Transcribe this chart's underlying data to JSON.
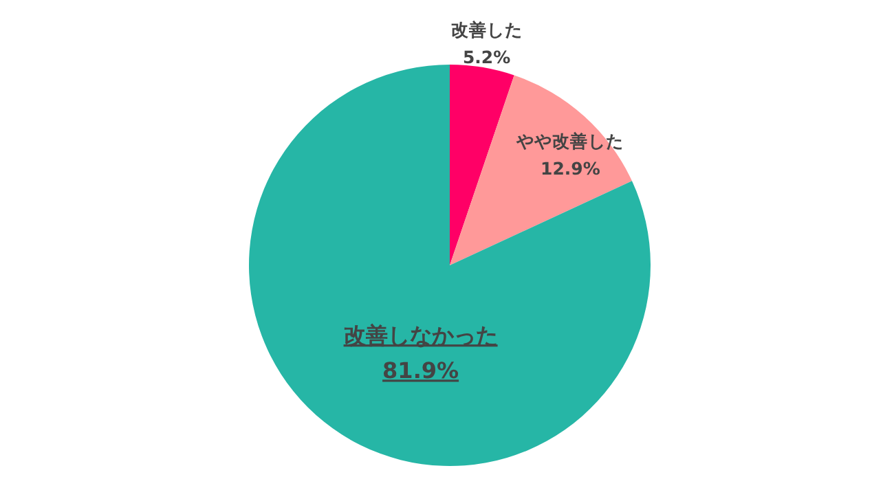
{
  "chart_data": {
    "type": "pie",
    "categories": [
      "改善した",
      "やや改善した",
      "改善しなかった"
    ],
    "values": [
      5.2,
      12.9,
      81.9
    ],
    "colors": [
      "#ff0066",
      "#ff9999",
      "#26b6a6"
    ],
    "value_labels": [
      "5.2%",
      "12.9%",
      "81.9%"
    ]
  }
}
